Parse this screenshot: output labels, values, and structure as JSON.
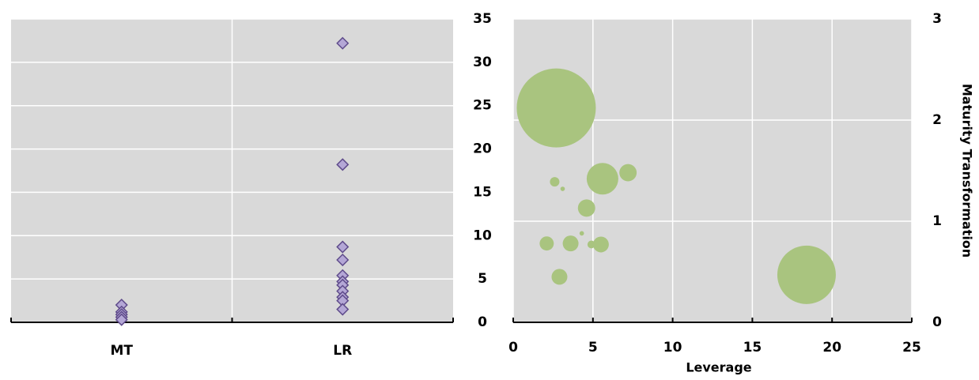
{
  "chart_data": [
    {
      "type": "strip",
      "categories": [
        "MT",
        "LR"
      ],
      "values": [
        [
          2.0,
          1.2,
          0.9,
          0.6,
          0.3
        ],
        [
          32.2,
          18.2,
          8.7,
          7.2,
          5.4,
          4.7,
          4.3,
          3.6,
          2.9,
          2.5,
          1.5
        ]
      ],
      "color": "#b4a7d6",
      "edge_color": "#5f4b8b",
      "ylim": [
        0,
        35
      ],
      "yticks": [
        0,
        5,
        10,
        15,
        20,
        25,
        30,
        35
      ],
      "grid": true
    },
    {
      "type": "bubble",
      "x": [
        2.7,
        5.6,
        7.2,
        2.6,
        3.1,
        4.6,
        4.3,
        2.1,
        3.6,
        4.9,
        5.5,
        2.9,
        18.4
      ],
      "y": [
        2.12,
        1.42,
        1.48,
        1.39,
        1.32,
        1.13,
        0.88,
        0.78,
        0.78,
        0.77,
        0.77,
        0.45,
        0.47
      ],
      "sizes": [
        625,
        100,
        30,
        9,
        2,
        30,
        2,
        20,
        25,
        6,
        25,
        25,
        342
      ],
      "color": "#a9c47f",
      "xlim": [
        0,
        25
      ],
      "xticks": [
        0,
        5,
        10,
        15,
        20,
        25
      ],
      "ylim": [
        0,
        3
      ],
      "yticks": [
        0,
        1,
        2,
        3
      ],
      "xlabel": "Leverage",
      "ylabel": "Maturity Transformation",
      "grid": true
    }
  ]
}
